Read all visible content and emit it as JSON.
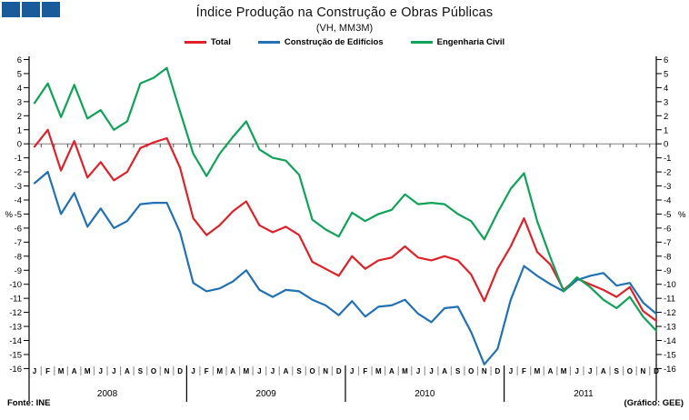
{
  "logo": {
    "color": "#1a5b9b",
    "square_count": 3
  },
  "header": {
    "title": "Índice Produção na Construção e Obras Públicas",
    "subtitle": "(VH, MM3M)"
  },
  "footer": {
    "source": "Fonte: INE",
    "credit": "(Gráfico: GEE)"
  },
  "chart_data": {
    "type": "line",
    "title": "Índice Produção na Construção e Obras Públicas",
    "subtitle": "(VH, MM3M)",
    "ylim": [
      -16,
      6
    ],
    "ytick_step": 1,
    "ylabel_left": "%",
    "ylabel_right": "%",
    "grid": "zero-line-only",
    "legend_position": "top-center",
    "months": [
      "J",
      "F",
      "M",
      "A",
      "M",
      "J",
      "J",
      "A",
      "S",
      "O",
      "N",
      "D"
    ],
    "years": [
      "2008",
      "2009",
      "2010",
      "2011"
    ],
    "series": [
      {
        "name": "Total",
        "color": "#e0212a",
        "values": [
          -0.2,
          1.0,
          -1.9,
          0.2,
          -2.4,
          -1.3,
          -2.6,
          -2.0,
          -0.3,
          0.1,
          0.4,
          -1.7,
          -5.3,
          -6.5,
          -5.8,
          -4.8,
          -4.1,
          -5.8,
          -6.3,
          -5.9,
          -6.5,
          -8.4,
          -8.9,
          -9.4,
          -8.0,
          -8.9,
          -8.3,
          -8.1,
          -7.3,
          -8.1,
          -8.3,
          -8.0,
          -8.3,
          -9.3,
          -11.2,
          -8.9,
          -7.3,
          -5.3,
          -7.7,
          -8.6,
          -10.4,
          -9.6,
          -10.0,
          -10.4,
          -10.9,
          -10.2,
          -11.9,
          -12.6
        ]
      },
      {
        "name": "Construção de Edifícios",
        "color": "#2271b4",
        "values": [
          -2.8,
          -2.0,
          -5.0,
          -3.5,
          -5.9,
          -4.6,
          -6.0,
          -5.5,
          -4.3,
          -4.2,
          -4.2,
          -6.3,
          -9.9,
          -10.5,
          -10.3,
          -9.8,
          -9.0,
          -10.4,
          -10.9,
          -10.4,
          -10.5,
          -11.1,
          -11.5,
          -12.2,
          -11.2,
          -12.3,
          -11.6,
          -11.5,
          -11.1,
          -12.1,
          -12.7,
          -11.7,
          -11.6,
          -13.4,
          -15.7,
          -14.6,
          -11.1,
          -8.7,
          -9.4,
          -10.0,
          -10.5,
          -9.7,
          -9.4,
          -9.2,
          -10.1,
          -9.9,
          -11.3,
          -12.1
        ]
      },
      {
        "name": "Engenharia Civil",
        "color": "#0fa357",
        "values": [
          2.9,
          4.3,
          1.9,
          4.2,
          1.8,
          2.4,
          1.0,
          1.6,
          4.3,
          4.7,
          5.4,
          2.3,
          -0.7,
          -2.3,
          -0.7,
          0.5,
          1.6,
          -0.4,
          -1.0,
          -1.2,
          -2.2,
          -5.4,
          -6.1,
          -6.6,
          -4.9,
          -5.5,
          -5.0,
          -4.7,
          -3.6,
          -4.3,
          -4.2,
          -4.3,
          -5.0,
          -5.5,
          -6.8,
          -4.9,
          -3.2,
          -2.1,
          -5.5,
          -8.1,
          -10.5,
          -9.5,
          -10.2,
          -11.1,
          -11.7,
          -10.9,
          -12.3,
          -13.3
        ]
      }
    ]
  }
}
